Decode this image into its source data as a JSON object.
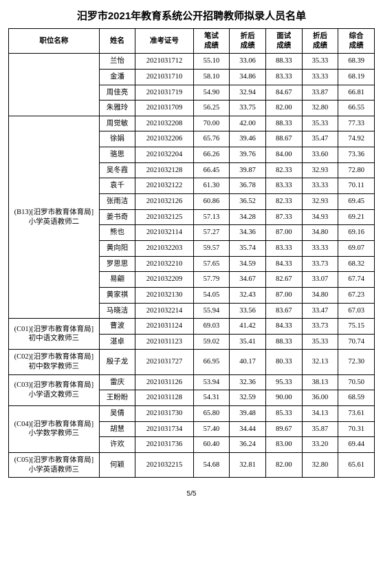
{
  "title": "汨罗市2021年教育系统公开招聘教师拟录人员名单",
  "headers": {
    "position": "职位名称",
    "name": "姓名",
    "exam_no": "准考证号",
    "written": "笔试\n成绩",
    "written_adj": "折后\n成绩",
    "interview": "面试\n成绩",
    "interview_adj": "折后\n成绩",
    "total": "综合\n成绩"
  },
  "groups": [
    {
      "position": "",
      "rows": [
        {
          "name": "兰怡",
          "exam_no": "2021031712",
          "s1": "55.10",
          "s2": "33.06",
          "s3": "88.33",
          "s4": "35.33",
          "s5": "68.39"
        },
        {
          "name": "金潘",
          "exam_no": "2021031710",
          "s1": "58.10",
          "s2": "34.86",
          "s3": "83.33",
          "s4": "33.33",
          "s5": "68.19"
        },
        {
          "name": "周佳亮",
          "exam_no": "2021031719",
          "s1": "54.90",
          "s2": "32.94",
          "s3": "84.67",
          "s4": "33.87",
          "s5": "66.81"
        },
        {
          "name": "朱雅玲",
          "exam_no": "2021031709",
          "s1": "56.25",
          "s2": "33.75",
          "s3": "82.00",
          "s4": "32.80",
          "s5": "66.55"
        }
      ]
    },
    {
      "position": "(B13)[汨罗市教育体育局]\n小学英语教师二",
      "rows": [
        {
          "name": "周觉敏",
          "exam_no": "2021032208",
          "s1": "70.00",
          "s2": "42.00",
          "s3": "88.33",
          "s4": "35.33",
          "s5": "77.33"
        },
        {
          "name": "徐娟",
          "exam_no": "2021032206",
          "s1": "65.76",
          "s2": "39.46",
          "s3": "88.67",
          "s4": "35.47",
          "s5": "74.92"
        },
        {
          "name": "骆思",
          "exam_no": "2021032204",
          "s1": "66.26",
          "s2": "39.76",
          "s3": "84.00",
          "s4": "33.60",
          "s5": "73.36"
        },
        {
          "name": "吴冬霞",
          "exam_no": "2021032128",
          "s1": "66.45",
          "s2": "39.87",
          "s3": "82.33",
          "s4": "32.93",
          "s5": "72.80"
        },
        {
          "name": "袁千",
          "exam_no": "2021032122",
          "s1": "61.30",
          "s2": "36.78",
          "s3": "83.33",
          "s4": "33.33",
          "s5": "70.11"
        },
        {
          "name": "张雨洁",
          "exam_no": "2021032126",
          "s1": "60.86",
          "s2": "36.52",
          "s3": "82.33",
          "s4": "32.93",
          "s5": "69.45"
        },
        {
          "name": "姜书奇",
          "exam_no": "2021032125",
          "s1": "57.13",
          "s2": "34.28",
          "s3": "87.33",
          "s4": "34.93",
          "s5": "69.21"
        },
        {
          "name": "熊也",
          "exam_no": "2021032114",
          "s1": "57.27",
          "s2": "34.36",
          "s3": "87.00",
          "s4": "34.80",
          "s5": "69.16"
        },
        {
          "name": "黄向阳",
          "exam_no": "2021032203",
          "s1": "59.57",
          "s2": "35.74",
          "s3": "83.33",
          "s4": "33.33",
          "s5": "69.07"
        },
        {
          "name": "罗思思",
          "exam_no": "2021032210",
          "s1": "57.65",
          "s2": "34.59",
          "s3": "84.33",
          "s4": "33.73",
          "s5": "68.32"
        },
        {
          "name": "易翩",
          "exam_no": "2021032209",
          "s1": "57.79",
          "s2": "34.67",
          "s3": "82.67",
          "s4": "33.07",
          "s5": "67.74"
        },
        {
          "name": "黄家祺",
          "exam_no": "2021032130",
          "s1": "54.05",
          "s2": "32.43",
          "s3": "87.00",
          "s4": "34.80",
          "s5": "67.23"
        },
        {
          "name": "马晓洁",
          "exam_no": "2021032214",
          "s1": "55.94",
          "s2": "33.56",
          "s3": "83.67",
          "s4": "33.47",
          "s5": "67.03"
        }
      ]
    },
    {
      "position": "(C01)[汨罗市教育体育局]\n初中语文教师三",
      "rows": [
        {
          "name": "曹波",
          "exam_no": "2021031124",
          "s1": "69.03",
          "s2": "41.42",
          "s3": "84.33",
          "s4": "33.73",
          "s5": "75.15"
        },
        {
          "name": "湛卓",
          "exam_no": "2021031123",
          "s1": "59.02",
          "s2": "35.41",
          "s3": "88.33",
          "s4": "35.33",
          "s5": "70.74"
        }
      ]
    },
    {
      "position": "(C02)[汨罗市教育体育局]\n初中数学教师三",
      "rows": [
        {
          "name": "殷子龙",
          "exam_no": "2021031727",
          "s1": "66.95",
          "s2": "40.17",
          "s3": "80.33",
          "s4": "32.13",
          "s5": "72.30"
        }
      ]
    },
    {
      "position": "(C03)[汨罗市教育体育局]\n小学语文教师三",
      "rows": [
        {
          "name": "雷庆",
          "exam_no": "2021031126",
          "s1": "53.94",
          "s2": "32.36",
          "s3": "95.33",
          "s4": "38.13",
          "s5": "70.50"
        },
        {
          "name": "王盼盼",
          "exam_no": "2021031128",
          "s1": "54.31",
          "s2": "32.59",
          "s3": "90.00",
          "s4": "36.00",
          "s5": "68.59"
        }
      ]
    },
    {
      "position": "(C04)[汨罗市教育体育局]\n小学数学教师三",
      "rows": [
        {
          "name": "吴倩",
          "exam_no": "2021031730",
          "s1": "65.80",
          "s2": "39.48",
          "s3": "85.33",
          "s4": "34.13",
          "s5": "73.61"
        },
        {
          "name": "胡慧",
          "exam_no": "2021031734",
          "s1": "57.40",
          "s2": "34.44",
          "s3": "89.67",
          "s4": "35.87",
          "s5": "70.31"
        },
        {
          "name": "许欢",
          "exam_no": "2021031736",
          "s1": "60.40",
          "s2": "36.24",
          "s3": "83.00",
          "s4": "33.20",
          "s5": "69.44"
        }
      ]
    },
    {
      "position": "(C05)[汨罗市教育体育局]\n小学英语教师三",
      "rows": [
        {
          "name": "何颖",
          "exam_no": "2021032215",
          "s1": "54.68",
          "s2": "32.81",
          "s3": "82.00",
          "s4": "32.80",
          "s5": "65.61"
        }
      ]
    }
  ],
  "page": "5/5"
}
